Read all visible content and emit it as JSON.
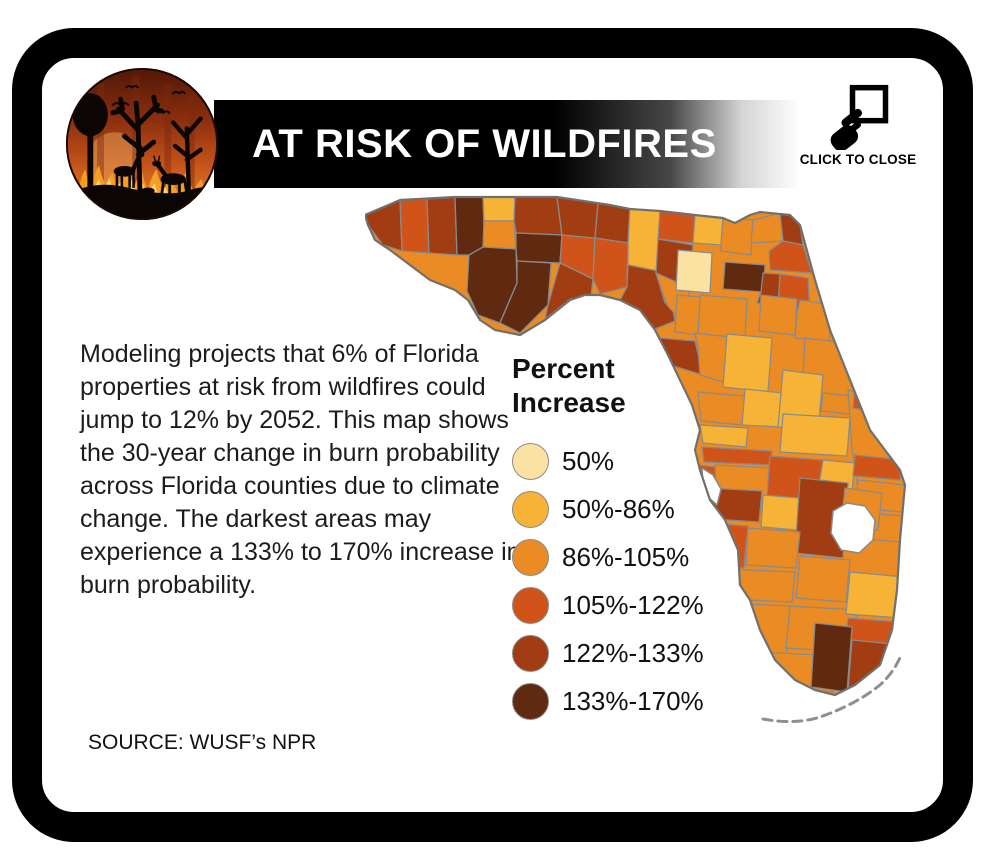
{
  "header": {
    "title": "AT RISK OF WILDFIRES",
    "close_label": "CLICK TO CLOSE"
  },
  "description": {
    "text": "Modeling projects that 6% of Florida properties at risk from wildfires could jump to 12% by 2052. This map shows the 30-year change in burn probability across Florida counties due to climate change. The darkest areas may experience a 133% to 170% increase in burn probability."
  },
  "source": {
    "text": "SOURCE: WUSF’s NPR"
  },
  "legend": {
    "title": "Percent Increase",
    "items": [
      {
        "label": "50%",
        "color": "#FAE3A2"
      },
      {
        "label": "50%-86%",
        "color": "#F6B336"
      },
      {
        "label": "86%-105%",
        "color": "#EA8C23"
      },
      {
        "label": "105%-122%",
        "color": "#D0541A"
      },
      {
        "label": "122%-133%",
        "color": "#A23D13"
      },
      {
        "label": "133%-170%",
        "color": "#5F2A10"
      }
    ]
  },
  "map": {
    "subject": "florida-county-burn-probability-choropleth",
    "county_border_color": "#8A8A8A",
    "coastline_color": "#707070",
    "water_color": "#FFFFFF",
    "regions": [
      {
        "id": "r01",
        "bucket": 4
      },
      {
        "id": "r02",
        "bucket": 3
      },
      {
        "id": "r03",
        "bucket": 4
      },
      {
        "id": "r04",
        "bucket": 5
      },
      {
        "id": "r05",
        "bucket": 1
      },
      {
        "id": "r06",
        "bucket": 2
      },
      {
        "id": "r07",
        "bucket": 4
      },
      {
        "id": "r08",
        "bucket": 5
      },
      {
        "id": "r09",
        "bucket": 5
      },
      {
        "id": "r10",
        "bucket": 5
      },
      {
        "id": "r11",
        "bucket": 3
      },
      {
        "id": "r12",
        "bucket": 4
      },
      {
        "id": "r13",
        "bucket": 4
      },
      {
        "id": "r14",
        "bucket": 4
      },
      {
        "id": "r15",
        "bucket": 3
      },
      {
        "id": "r16",
        "bucket": 1
      },
      {
        "id": "r17",
        "bucket": 3
      },
      {
        "id": "r18",
        "bucket": 4
      },
      {
        "id": "r19",
        "bucket": 1
      },
      {
        "id": "r20",
        "bucket": 4
      },
      {
        "id": "r21",
        "bucket": 2
      },
      {
        "id": "r22",
        "bucket": 2
      },
      {
        "id": "r23",
        "bucket": 2
      },
      {
        "id": "r24",
        "bucket": 4
      },
      {
        "id": "r25",
        "bucket": 3
      },
      {
        "id": "r26",
        "bucket": 0
      },
      {
        "id": "r27",
        "bucket": 5
      },
      {
        "id": "r28",
        "bucket": 4
      },
      {
        "id": "r29",
        "bucket": 3
      },
      {
        "id": "r30",
        "bucket": 2
      },
      {
        "id": "r31",
        "bucket": 2
      },
      {
        "id": "r32",
        "bucket": 2
      },
      {
        "id": "r33",
        "bucket": 4
      },
      {
        "id": "r34",
        "bucket": 2
      },
      {
        "id": "r35",
        "bucket": 1
      },
      {
        "id": "r36",
        "bucket": 2
      },
      {
        "id": "r37",
        "bucket": 2
      },
      {
        "id": "r38",
        "bucket": 2
      },
      {
        "id": "r39",
        "bucket": 1
      },
      {
        "id": "r40",
        "bucket": 1
      },
      {
        "id": "r41",
        "bucket": 2
      },
      {
        "id": "r42",
        "bucket": 1
      },
      {
        "id": "r43",
        "bucket": 1
      },
      {
        "id": "r44",
        "bucket": 3
      },
      {
        "id": "r45",
        "bucket": 3
      },
      {
        "id": "r46",
        "bucket": 2
      },
      {
        "id": "r47",
        "bucket": 3
      },
      {
        "id": "r48",
        "bucket": 1
      },
      {
        "id": "r49",
        "bucket": 2
      },
      {
        "id": "r50",
        "bucket": 3
      },
      {
        "id": "r51",
        "bucket": 3
      },
      {
        "id": "r52",
        "bucket": 2
      },
      {
        "id": "r53",
        "bucket": 2
      },
      {
        "id": "r54",
        "bucket": 4
      },
      {
        "id": "r55",
        "bucket": 1
      },
      {
        "id": "r56",
        "bucket": 4
      },
      {
        "id": "r57",
        "bucket": 2
      },
      {
        "id": "r58",
        "bucket": 3
      },
      {
        "id": "r59",
        "bucket": 2
      },
      {
        "id": "r60",
        "bucket": 2
      },
      {
        "id": "r61",
        "bucket": 2
      },
      {
        "id": "r62",
        "bucket": 2
      },
      {
        "id": "r63",
        "bucket": 2
      },
      {
        "id": "r64",
        "bucket": 1
      },
      {
        "id": "r65",
        "bucket": 3
      },
      {
        "id": "r66",
        "bucket": 2
      },
      {
        "id": "r67",
        "bucket": 5
      },
      {
        "id": "r68",
        "bucket": 4
      }
    ]
  }
}
